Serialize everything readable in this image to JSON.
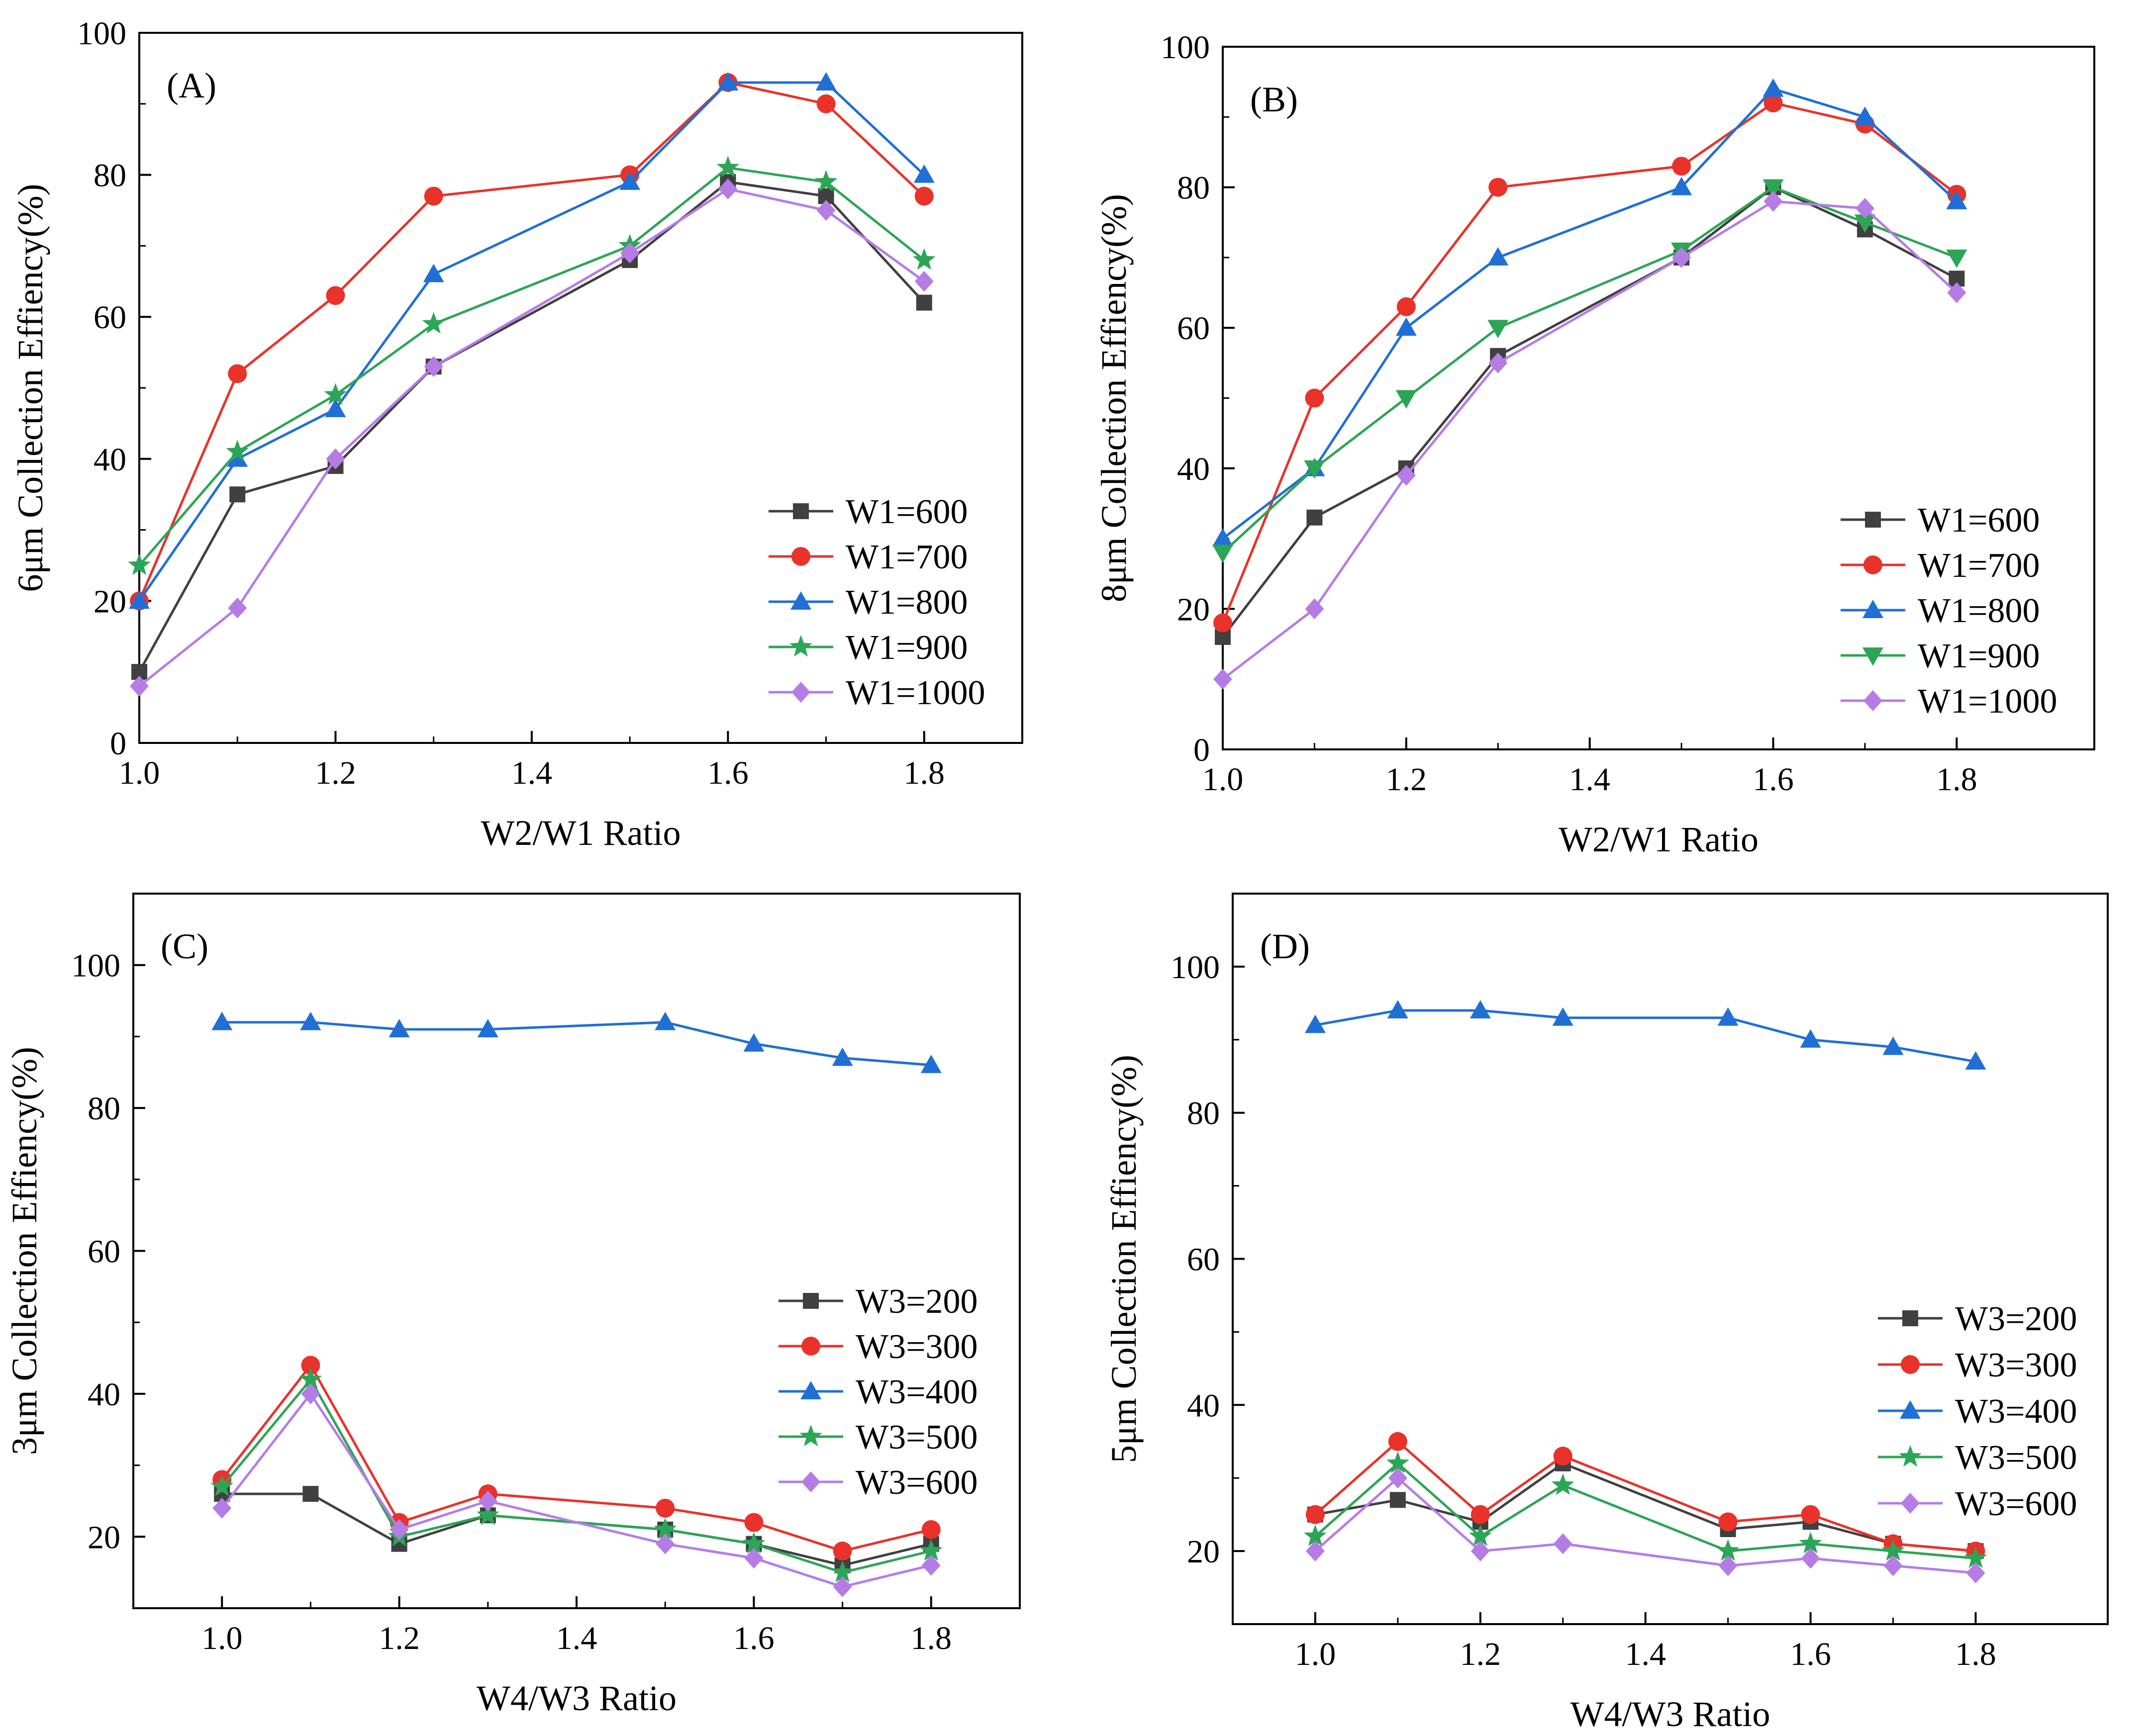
{
  "figure": {
    "colors": {
      "series_1": "#404040",
      "series_2": "#e8322a",
      "series_3": "#1f6fd6",
      "series_4": "#2da556",
      "series_5": "#b57ce6"
    }
  },
  "chart_data": [
    {
      "type": "line",
      "panel_label": "(A)",
      "xlabel": "W2/W1 Ratio",
      "ylabel": "6μm Collection Effiency(%)",
      "xlim": [
        1.0,
        1.9
      ],
      "ylim": [
        0,
        100
      ],
      "xticks": [
        1.0,
        1.2,
        1.4,
        1.6,
        1.8
      ],
      "xtick_labels": [
        "1.0",
        "1.2",
        "1.4",
        "1.6",
        "1.8"
      ],
      "yticks": [
        0,
        20,
        40,
        60,
        80,
        100
      ],
      "ytick_labels": [
        "0",
        "20",
        "40",
        "60",
        "80",
        "100"
      ],
      "legend_position": "bottom-right",
      "x": [
        1.0,
        1.1,
        1.2,
        1.3,
        1.5,
        1.6,
        1.7,
        1.8
      ],
      "series": [
        {
          "name": "W1=600",
          "marker": "square",
          "color": "#404040",
          "values": [
            10,
            35,
            39,
            53,
            68,
            79,
            77,
            62
          ]
        },
        {
          "name": "W1=700",
          "marker": "circle",
          "color": "#e8322a",
          "values": [
            20,
            52,
            63,
            77,
            80,
            93,
            90,
            77
          ]
        },
        {
          "name": "W1=800",
          "marker": "triangle-up",
          "color": "#1f6fd6",
          "values": [
            20,
            40,
            47,
            66,
            79,
            93,
            93,
            80
          ]
        },
        {
          "name": "W1=900",
          "marker": "star",
          "color": "#2da556",
          "values": [
            25,
            41,
            49,
            59,
            70,
            81,
            79,
            68
          ]
        },
        {
          "name": "W1=1000",
          "marker": "diamond",
          "color": "#b57ce6",
          "values": [
            8,
            19,
            40,
            53,
            69,
            78,
            75,
            65
          ]
        }
      ]
    },
    {
      "type": "line",
      "panel_label": "(B)",
      "xlabel": "W2/W1 Ratio",
      "ylabel": "8μm Collection Effiency(%)",
      "xlim": [
        1.0,
        1.95
      ],
      "ylim": [
        0,
        100
      ],
      "xticks": [
        1.0,
        1.2,
        1.4,
        1.6,
        1.8
      ],
      "xtick_labels": [
        "1.0",
        "1.2",
        "1.4",
        "1.6",
        "1.8"
      ],
      "yticks": [
        0,
        20,
        40,
        60,
        80,
        100
      ],
      "ytick_labels": [
        "0",
        "20",
        "40",
        "60",
        "80",
        "100"
      ],
      "legend_position": "bottom-right",
      "x": [
        1.0,
        1.1,
        1.2,
        1.3,
        1.5,
        1.6,
        1.7,
        1.8
      ],
      "series": [
        {
          "name": "W1=600",
          "marker": "square",
          "color": "#404040",
          "values": [
            16,
            33,
            40,
            56,
            70,
            80,
            74,
            67
          ]
        },
        {
          "name": "W1=700",
          "marker": "circle",
          "color": "#e8322a",
          "values": [
            18,
            50,
            63,
            80,
            83,
            92,
            89,
            79
          ]
        },
        {
          "name": "W1=800",
          "marker": "triangle-up",
          "color": "#1f6fd6",
          "values": [
            30,
            40,
            60,
            70,
            80,
            94,
            90,
            78
          ]
        },
        {
          "name": "W1=900",
          "marker": "triangle-down",
          "color": "#2da556",
          "values": [
            28,
            40,
            50,
            60,
            71,
            80,
            75,
            70
          ]
        },
        {
          "name": "W1=1000",
          "marker": "diamond",
          "color": "#b57ce6",
          "values": [
            10,
            20,
            39,
            55,
            70,
            78,
            77,
            65
          ]
        }
      ]
    },
    {
      "type": "line",
      "panel_label": "(C)",
      "xlabel": "W4/W3 Ratio",
      "ylabel": "3μm Collection Effiency(%)",
      "xlim": [
        0.9,
        1.9
      ],
      "ylim": [
        10,
        110
      ],
      "xticks": [
        1.0,
        1.2,
        1.4,
        1.6,
        1.8
      ],
      "xtick_labels": [
        "1.0",
        "1.2",
        "1.4",
        "1.6",
        "1.8"
      ],
      "yticks": [
        20,
        40,
        60,
        80,
        100
      ],
      "ytick_labels": [
        "20",
        "40",
        "60",
        "80",
        "100"
      ],
      "legend_position": "lower-right",
      "x": [
        1.0,
        1.1,
        1.2,
        1.3,
        1.5,
        1.6,
        1.7,
        1.8
      ],
      "series": [
        {
          "name": "W3=200",
          "marker": "square",
          "color": "#404040",
          "values": [
            26,
            26,
            19,
            23,
            21,
            19,
            16,
            19
          ]
        },
        {
          "name": "W3=300",
          "marker": "circle",
          "color": "#e8322a",
          "values": [
            28,
            44,
            22,
            26,
            24,
            22,
            18,
            21
          ]
        },
        {
          "name": "W3=400",
          "marker": "triangle-up",
          "color": "#1f6fd6",
          "values": [
            92,
            92,
            91,
            91,
            92,
            89,
            87,
            86
          ]
        },
        {
          "name": "W3=500",
          "marker": "star",
          "color": "#2da556",
          "values": [
            27,
            42,
            20,
            23,
            21,
            19,
            15,
            18
          ]
        },
        {
          "name": "W3=600",
          "marker": "diamond",
          "color": "#b57ce6",
          "values": [
            24,
            40,
            21,
            25,
            19,
            17,
            13,
            16
          ]
        }
      ]
    },
    {
      "type": "line",
      "panel_label": "(D)",
      "xlabel": "W4/W3 Ratio",
      "ylabel": "5μm Collection Effiency(%)",
      "xlim": [
        0.9,
        1.96
      ],
      "ylim": [
        10,
        110
      ],
      "xticks": [
        1.0,
        1.2,
        1.4,
        1.6,
        1.8
      ],
      "xtick_labels": [
        "1.0",
        "1.2",
        "1.4",
        "1.6",
        "1.8"
      ],
      "yticks": [
        20,
        40,
        60,
        80,
        100
      ],
      "ytick_labels": [
        "20",
        "40",
        "60",
        "80",
        "100"
      ],
      "legend_position": "lower-right",
      "x": [
        1.0,
        1.1,
        1.2,
        1.3,
        1.5,
        1.6,
        1.7,
        1.8
      ],
      "series": [
        {
          "name": "W3=200",
          "marker": "square",
          "color": "#404040",
          "values": [
            25,
            27,
            24,
            32,
            23,
            24,
            21,
            20
          ]
        },
        {
          "name": "W3=300",
          "marker": "circle",
          "color": "#e8322a",
          "values": [
            25,
            35,
            25,
            33,
            24,
            25,
            21,
            20
          ]
        },
        {
          "name": "W3=400",
          "marker": "triangle-up",
          "color": "#1f6fd6",
          "values": [
            92,
            94,
            94,
            93,
            93,
            90,
            89,
            87
          ]
        },
        {
          "name": "W3=500",
          "marker": "star",
          "color": "#2da556",
          "values": [
            22,
            32,
            22,
            29,
            20,
            21,
            20,
            19
          ]
        },
        {
          "name": "W3=600",
          "marker": "diamond",
          "color": "#b57ce6",
          "values": [
            20,
            30,
            20,
            21,
            18,
            19,
            18,
            17
          ]
        }
      ]
    }
  ]
}
